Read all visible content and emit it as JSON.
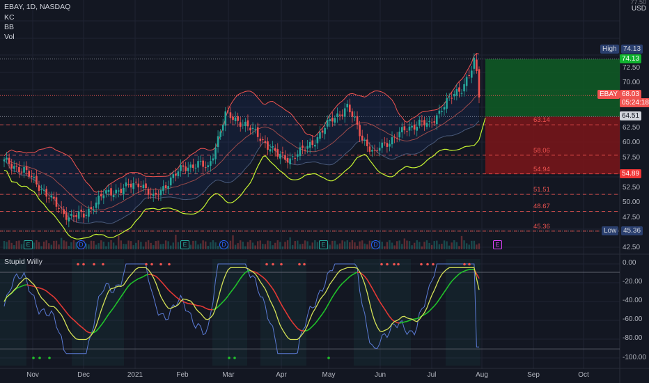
{
  "legend": {
    "symbol_line": "EBAY, 1D, NASDAQ",
    "indicators": [
      "KC",
      "BB",
      "Vol"
    ],
    "oscillator_name": "Stupid Willy"
  },
  "price_axis": {
    "currency": "USD",
    "top_clip": "77.50",
    "ticks": [
      "72.50",
      "70.00",
      "62.50",
      "60.00",
      "57.50",
      "55.00",
      "52.50",
      "50.00",
      "47.50",
      "42.50"
    ],
    "tick_values": [
      72.5,
      70,
      62.5,
      60,
      57.5,
      55,
      52.5,
      50,
      47.5,
      42.5
    ]
  },
  "osc_axis": {
    "ticks": [
      "0.00",
      "-20.00",
      "-40.00",
      "-60.00",
      "-80.00",
      "-100.00"
    ],
    "tick_values": [
      0,
      -20,
      -40,
      -60,
      -80,
      -100
    ]
  },
  "time_axis": {
    "labels": [
      "Nov",
      "Dec",
      "2021",
      "Feb",
      "Mar",
      "Apr",
      "May",
      "Jun",
      "Jul",
      "Aug",
      "Sep",
      "Oct"
    ]
  },
  "price_labels": {
    "high_label": "High",
    "high_value": "74.13",
    "target_value": "74.13",
    "last_symbol": "EBAY",
    "last_value": "68.03",
    "countdown": "05:24:18",
    "entry_value": "64.51",
    "stop_value": "54.89",
    "low_label": "Low",
    "low_value": "45.36"
  },
  "fib_levels": [
    {
      "label": "63.14",
      "value": 63.14
    },
    {
      "label": "58.06",
      "value": 58.06
    },
    {
      "label": "54.94",
      "value": 54.94
    },
    {
      "label": "51.51",
      "value": 51.51
    },
    {
      "label": "48.67",
      "value": 48.67
    },
    {
      "label": "45.36",
      "value": 45.36
    }
  ],
  "event_markers": [
    {
      "letter": "E",
      "kind": "earnings"
    },
    {
      "letter": "D",
      "kind": "dividend"
    },
    {
      "letter": "E",
      "kind": "earnings"
    },
    {
      "letter": "D",
      "kind": "dividend"
    },
    {
      "letter": "E",
      "kind": "earnings"
    },
    {
      "letter": "D",
      "kind": "dividend"
    },
    {
      "letter": "E",
      "kind": "earnings-upcoming"
    }
  ],
  "position": {
    "entry": 64.51,
    "target": 74.13,
    "stop": 54.89
  },
  "colors": {
    "background": "#131722",
    "up_candle": "#26a69a",
    "down_candle": "#ef5350",
    "keltner": "#ef5350",
    "bollinger_lower": "#c6f432",
    "profit_zone": "#0f5d25",
    "loss_zone": "#7b1519",
    "osc_line": "#5b7bd5",
    "osc_signal_up": "#21c32b",
    "osc_signal_down": "#e53935",
    "osc_signal_yellow": "#d4e157"
  }
}
